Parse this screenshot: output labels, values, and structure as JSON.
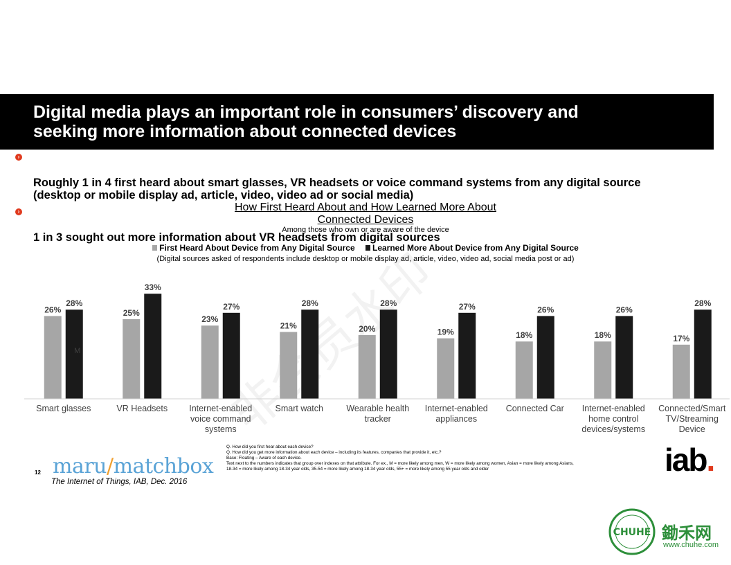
{
  "slide": {
    "title": "Digital media plays an important role in consumers’ discovery and\nseeking more information about connected devices",
    "bullets": [
      "Roughly 1 in 4 first heard about smart glasses, VR headsets or voice command systems from any digital source\n(desktop or mobile display ad, article, video, video ad or social media)",
      "1 in 3 sought out more information about VR headsets from digital sources"
    ],
    "page_number": "12",
    "source": "The Internet of Things, IAB, Dec. 2016",
    "footnotes": "Q. How did you first hear about each device?\nQ. How did you get more information about each device – including its features, companies that provide it, etc.?\nBase: Floating – Aware of each device.\nText next to the numbers indicates that group over indexes on that attribute.  For ex., M = more likely among men, W = more likely among women, Asian = more likely among Asians,\n18-34 = more likely among 18-34 year olds, 35-54 = more likely among 18-34 year olds, 55+ = more likely among 55 year olds and older",
    "logos": {
      "maru_part1": "maru",
      "maru_slash": "/",
      "maru_part2": "matchbox",
      "iab": "iab",
      "iab_dot": ".",
      "chuhe_cn": "鋤禾网",
      "chuhe_url": "www.chuhe.com",
      "chuhe_ring": "CHUHE MEANS ORGANIC"
    },
    "watermark": "非会员水印"
  },
  "chart_data": {
    "type": "bar",
    "title": "How First Heard About and How Learned More About\nConnected Devices",
    "subtitle": "Among those who own or are aware of the device",
    "legend_note": "(Digital sources asked of respondents include desktop or mobile display ad, article, video, video ad, social media post or ad)",
    "categories": [
      "Smart glasses",
      "VR Headsets",
      "Internet-enabled voice command systems",
      "Smart watch",
      "Wearable health tracker",
      "Internet-enabled appliances",
      "Connected Car",
      "Internet-enabled home control devices/systems",
      "Connected/Smart TV/Streaming Device"
    ],
    "category_lines": [
      [
        "Smart glasses"
      ],
      [
        "VR Headsets"
      ],
      [
        "Internet-enabled",
        "voice command",
        "systems"
      ],
      [
        "Smart watch"
      ],
      [
        "Wearable health",
        "tracker"
      ],
      [
        "Internet-enabled",
        "appliances"
      ],
      [
        "Connected Car"
      ],
      [
        "Internet-enabled",
        "home control",
        "devices/systems"
      ],
      [
        "Connected/Smart",
        "TV/Streaming",
        "Device"
      ]
    ],
    "series": [
      {
        "name": "First Heard About Device from Any Digital Source",
        "color": "#a6a6a6",
        "values": [
          26,
          25,
          23,
          21,
          20,
          19,
          18,
          18,
          17
        ],
        "labels": [
          "26%",
          "25%",
          "23%",
          "21%",
          "20%",
          "19%",
          "18%",
          "18%",
          "17%"
        ]
      },
      {
        "name": "Learned More About Device from Any Digital Source",
        "color": "#1a1a1a",
        "values": [
          28,
          33,
          27,
          28,
          28,
          27,
          26,
          26,
          28
        ],
        "labels": [
          "28%",
          "33%",
          "27%",
          "28%",
          "28%",
          "27%",
          "26%",
          "26%",
          "28%"
        ]
      }
    ],
    "annotations": [
      {
        "category": "Smart glasses",
        "text": "M"
      }
    ],
    "ylim": [
      0,
      35
    ],
    "grid": false,
    "legend": "top"
  }
}
